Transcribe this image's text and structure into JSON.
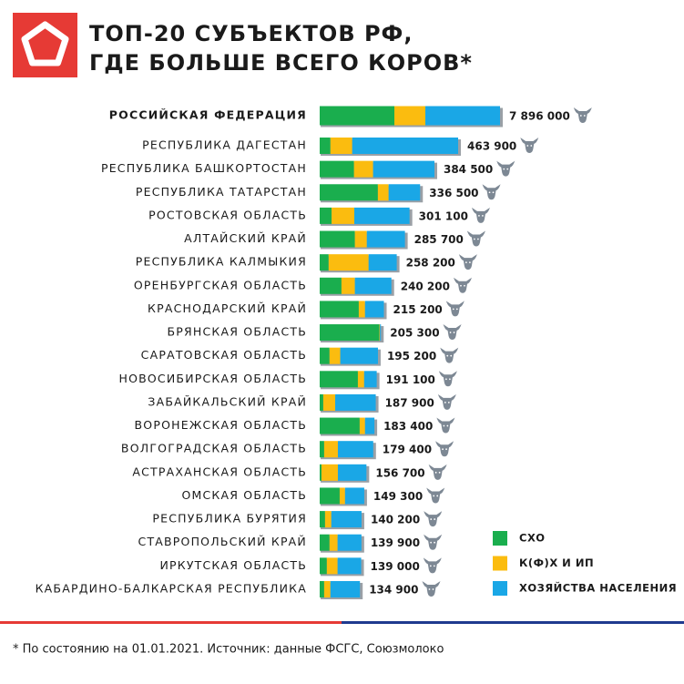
{
  "header": {
    "title": [
      "ТОП-20 СУБЪЕКТОВ РФ,",
      "ГДЕ БОЛЬШЕ ВСЕГО КОРОВ*"
    ]
  },
  "chart_data": [
    {
      "type": "stacked_bar",
      "orientation": "horizontal",
      "categories": [
        "РОССИЙСКАЯ ФЕДЕРАЦИЯ"
      ],
      "series": [
        {
          "color": "#1aae4e",
          "values": [
            3270000
          ]
        },
        {
          "color": "#fbbc0f",
          "values": [
            1356000
          ]
        },
        {
          "color": "#1aa7e6",
          "values": [
            3270000
          ]
        }
      ],
      "totals": [
        7896000
      ],
      "total_labels": [
        "7 896 000"
      ]
    },
    {
      "type": "stacked_bar",
      "orientation": "horizontal",
      "categories": [
        "РЕСПУБЛИКА ДАГЕСТАН",
        "РЕСПУБЛИКА БАШКОРТОСТАН",
        "РЕСПУБЛИКА ТАТАРСТАН",
        "РОСТОВСКАЯ ОБЛАСТЬ",
        "АЛТАЙСКИЙ КРАЙ",
        "РЕСПУБЛИКА КАЛМЫКИЯ",
        "ОРЕНБУРГСКАЯ ОБЛАСТЬ",
        "КРАСНОДАРСКИЙ КРАЙ",
        "БРЯНСКАЯ ОБЛАСТЬ",
        "САРАТОВСКАЯ ОБЛАСТЬ",
        "НОВОСИБИРСКАЯ ОБЛАСТЬ",
        "ЗАБАЙКАЛЬСКИЙ КРАЙ",
        "ВОРОНЕЖСКАЯ ОБЛАСТЬ",
        "ВОЛГОГРАДСКАЯ ОБЛАСТЬ",
        "АСТРАХАНСКАЯ ОБЛАСТЬ",
        "ОМСКАЯ ОБЛАСТЬ",
        "РЕСПУБЛИКА БУРЯТИЯ",
        "СТАВРОПОЛЬСКИЙ КРАЙ",
        "ИРКУТСКАЯ ОБЛАСТЬ",
        "КАБАРДИНО-БАЛКАРСКАЯ  РЕСПУБЛИКА"
      ],
      "series": [
        {
          "name": "СХО",
          "color": "#1aae4e",
          "values": [
            36000,
            115000,
            195000,
            40000,
            118000,
            30000,
            73000,
            131000,
            200000,
            33000,
            128000,
            12000,
            134000,
            15000,
            6000,
            67000,
            18000,
            33000,
            24000,
            15000
          ]
        },
        {
          "name": "К(Ф)Х И ИП",
          "color": "#fbbc0f",
          "values": [
            73000,
            64000,
            36000,
            76000,
            40000,
            134000,
            45000,
            21000,
            2000,
            36000,
            21000,
            40000,
            18000,
            46000,
            55000,
            18000,
            21000,
            27000,
            36000,
            21000
          ]
        },
        {
          "name": "ХОЗЯЙСТВА НАСЕЛЕНИЯ",
          "color": "#1aa7e6",
          "values": [
            354900,
            205500,
            105500,
            185100,
            127700,
            94200,
            122200,
            63200,
            3300,
            126200,
            42100,
            135900,
            31400,
            118400,
            95700,
            64300,
            101200,
            79900,
            79000,
            98900
          ]
        }
      ],
      "totals": [
        463900,
        384500,
        336500,
        301100,
        285700,
        258200,
        240200,
        215200,
        205300,
        195200,
        191100,
        187900,
        183400,
        179400,
        156700,
        149300,
        140200,
        139900,
        139000,
        134900
      ],
      "total_labels": [
        "463 900",
        "384 500",
        "336 500",
        "301 100",
        "285 700",
        "258 200",
        "240 200",
        "215 200",
        "205 300",
        "195 200",
        "191 100",
        "187 900",
        "183 400",
        "179 400",
        "156 700",
        "149 300",
        "140 200",
        "139 900",
        "139 000",
        "134 900"
      ],
      "legend": "lower right"
    }
  ],
  "footnote": "* По состоянию на 01.01.2021. Источник: данные ФСГС, Союзмолоко"
}
